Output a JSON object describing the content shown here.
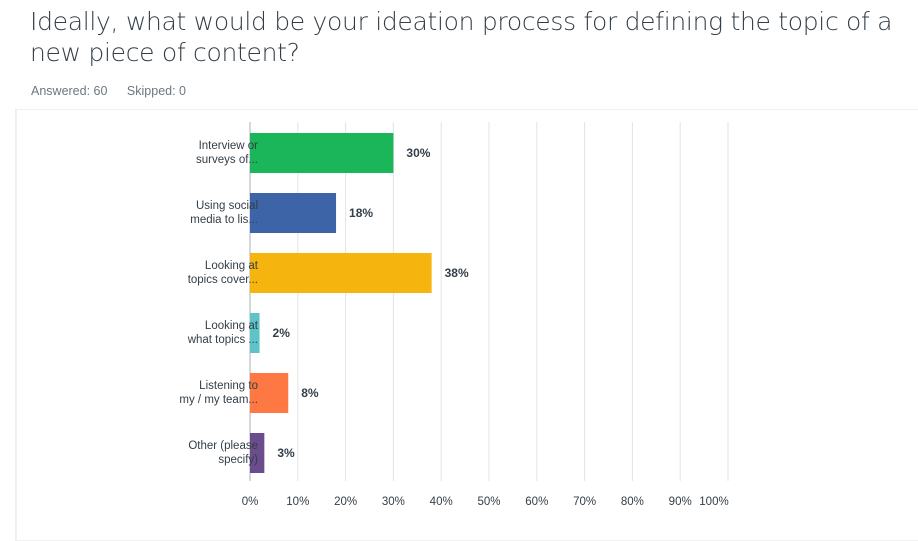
{
  "question": {
    "title": "Ideally, what would be your ideation process for defining the topic of a new piece of content?",
    "answered": "Answered: 60",
    "skipped": "Skipped: 0"
  },
  "chart_data": {
    "type": "bar",
    "orientation": "horizontal",
    "categories": [
      [
        "Interview or",
        "surveys of..."
      ],
      [
        "Using social",
        "media to lis..."
      ],
      [
        "Looking at",
        "topics cover..."
      ],
      [
        "Looking at",
        "what topics ..."
      ],
      [
        "Listening to",
        "my / my team..."
      ],
      [
        "Other (please",
        "specify)"
      ]
    ],
    "values": [
      30,
      18,
      38,
      2,
      8,
      3
    ],
    "value_labels": [
      "30%",
      "18%",
      "38%",
      "2%",
      "8%",
      "3%"
    ],
    "colors": [
      "#1bb65a",
      "#3e64a8",
      "#f6b40f",
      "#5ec4c8",
      "#fd7842",
      "#6b4c8d"
    ],
    "xlim": [
      0,
      100
    ],
    "xticks": [
      "0%",
      "10%",
      "20%",
      "30%",
      "40%",
      "50%",
      "60%",
      "70%",
      "80%",
      "90%",
      "100%"
    ],
    "grid": true
  }
}
